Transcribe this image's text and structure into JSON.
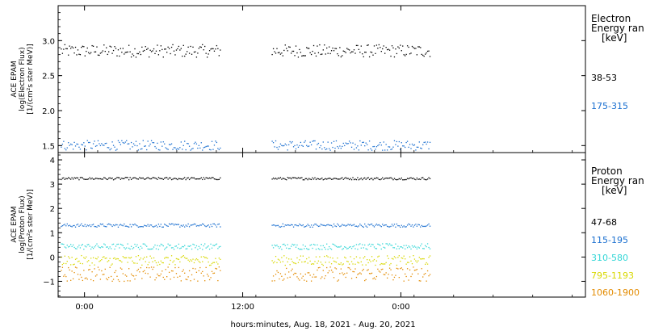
{
  "chart_data": [
    {
      "type": "scatter",
      "panel": "electron",
      "ylabel_lines": [
        "ACE EPAM",
        "log(Electron Flux)",
        "[1/(cm²s ster MeV)]"
      ],
      "ylim": [
        1.4,
        3.5
      ],
      "yticks": [
        "1.5",
        "2.0",
        "2.5",
        "3.0"
      ],
      "ytick_values": [
        1.5,
        2.0,
        2.5,
        3.0
      ],
      "legend_title": [
        "Electron",
        "Energy ran",
        "[keV]"
      ],
      "series": [
        {
          "name": "38-53",
          "color": "#000000",
          "base": 2.86,
          "jitter": 0.09,
          "values_range": [
            2.75,
            2.98
          ]
        },
        {
          "name": "175-315",
          "color": "#1a6fd0",
          "base": 1.51,
          "jitter": 0.07,
          "values_range": [
            1.44,
            1.6
          ]
        }
      ]
    },
    {
      "type": "scatter",
      "panel": "proton",
      "ylabel_lines": [
        "ACE EPAM",
        "log(Proton Flux)",
        "[1/(cm²s ster MeV)]"
      ],
      "ylim": [
        -1.65,
        4.3
      ],
      "yticks": [
        "−1",
        "0",
        "1",
        "2",
        "3",
        "4"
      ],
      "ytick_values": [
        -1,
        0,
        1,
        2,
        3,
        4
      ],
      "legend_title": [
        "Proton",
        "Energy ran",
        "[keV]"
      ],
      "series": [
        {
          "name": "47-68",
          "color": "#000000",
          "base": 3.25,
          "jitter": 0.05,
          "values_range": [
            3.2,
            3.3
          ]
        },
        {
          "name": "115-195",
          "color": "#1a6fd0",
          "base": 1.32,
          "jitter": 0.07,
          "values_range": [
            1.25,
            1.4
          ]
        },
        {
          "name": "310-580",
          "color": "#33d6d6",
          "base": 0.45,
          "jitter": 0.12,
          "values_range": [
            0.3,
            0.6
          ]
        },
        {
          "name": "795-1193",
          "color": "#d8d800",
          "base": -0.12,
          "jitter": 0.2,
          "values_range": [
            -0.35,
            0.1
          ]
        },
        {
          "name": "1060-1900",
          "color": "#e38b00",
          "base": -0.68,
          "jitter": 0.3,
          "values_range": [
            -1.1,
            -0.35
          ]
        }
      ]
    }
  ],
  "x_axis": {
    "title": "hours:minutes, Aug. 18, 2021 - Aug. 20, 2021",
    "range_hours": [
      -2,
      38
    ],
    "tick_labels": [
      "0:00",
      "12:00",
      "0:00"
    ],
    "tick_values": [
      0,
      12,
      24
    ],
    "data_segments_hours": [
      [
        -1.8,
        10.3
      ],
      [
        14.2,
        26.2
      ]
    ]
  }
}
